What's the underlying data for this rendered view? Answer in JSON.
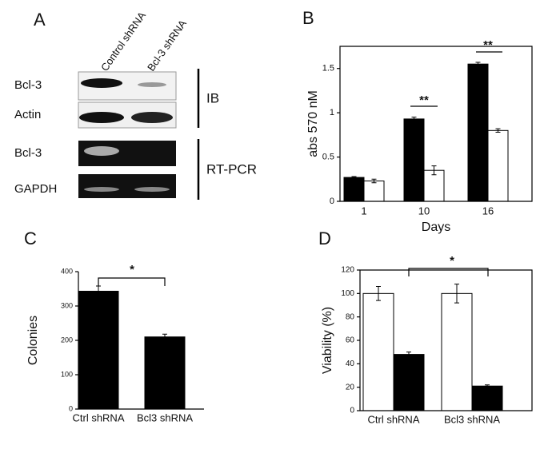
{
  "blot_panel": {
    "panel": "A",
    "lanes": [
      "Control shRNA",
      "Bcl-3 shRNA"
    ],
    "rows": [
      "Bcl-3",
      "Actin",
      "Bcl-3",
      "GAPDH"
    ],
    "groups": [
      "IB",
      "RT-PCR"
    ]
  },
  "chart_data": [
    {
      "type": "bar",
      "panel": "B",
      "categories": [
        "1",
        "10",
        "16"
      ],
      "x_label": "Days",
      "y_label": "abs 570 nM",
      "series": [
        {
          "color": "#000000",
          "values": [
            0.27,
            0.93,
            1.55
          ],
          "errors": [
            0.01,
            0.02,
            0.02
          ]
        },
        {
          "color": "#ffffff",
          "values": [
            0.23,
            0.35,
            0.8
          ],
          "errors": [
            0.02,
            0.05,
            0.02
          ]
        }
      ],
      "ylim": [
        0,
        1.75
      ],
      "yticks": [
        0,
        0.5,
        1,
        1.5
      ],
      "annotations": [
        "**",
        "**"
      ]
    },
    {
      "type": "bar",
      "panel": "C",
      "categories": [
        "Ctrl shRNA",
        "Bcl3 shRNA"
      ],
      "y_label": "Colonies",
      "series": [
        {
          "color": "#000000",
          "values": [
            343,
            210
          ],
          "errors": [
            15,
            8
          ]
        }
      ],
      "ylim": [
        0,
        400
      ],
      "yticks": [
        0,
        100,
        200,
        300,
        400
      ],
      "annotations": [
        "*"
      ]
    },
    {
      "type": "bar",
      "panel": "D",
      "categories": [
        "Ctrl shRNA",
        "Bcl3 shRNA"
      ],
      "y_label": "Viability (%)",
      "series": [
        {
          "color": "#ffffff",
          "values": [
            100,
            100
          ],
          "errors": [
            6,
            8
          ]
        },
        {
          "color": "#000000",
          "values": [
            48,
            21
          ],
          "errors": [
            2,
            1
          ]
        }
      ],
      "ylim": [
        0,
        120
      ],
      "yticks": [
        0,
        20,
        40,
        60,
        80,
        100,
        120
      ],
      "annotations": [
        "*"
      ]
    }
  ]
}
